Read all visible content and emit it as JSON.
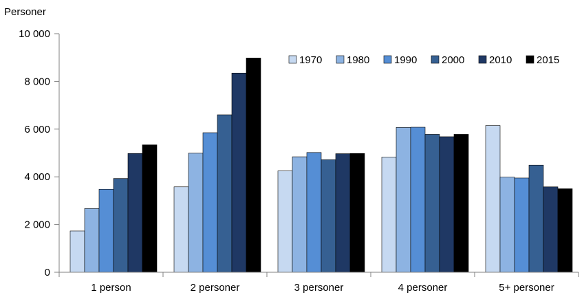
{
  "chart_data": {
    "type": "bar",
    "ylabel": "Personer",
    "ylim": [
      0,
      10000
    ],
    "yticks": [
      0,
      2000,
      4000,
      6000,
      8000,
      10000
    ],
    "ytick_labels": [
      "0",
      "2 000",
      "4 000",
      "6 000",
      "8 000",
      "10 000"
    ],
    "categories": [
      "1 person",
      "2 personer",
      "3 personer",
      "4 personer",
      "5+ personer"
    ],
    "legend_position": "top-right",
    "grid": false,
    "series": [
      {
        "name": "1970",
        "color": "#c6d9f1",
        "values": [
          1730,
          3580,
          4250,
          4830,
          6150
        ]
      },
      {
        "name": "1980",
        "color": "#8db3e2",
        "values": [
          2670,
          4990,
          4840,
          6070,
          3990
        ]
      },
      {
        "name": "1990",
        "color": "#558ed5",
        "values": [
          3480,
          5850,
          5020,
          6080,
          3950
        ]
      },
      {
        "name": "2000",
        "color": "#366092",
        "values": [
          3930,
          6600,
          4720,
          5780,
          4490
        ]
      },
      {
        "name": "2010",
        "color": "#1f3864",
        "values": [
          4980,
          8350,
          4970,
          5680,
          3580
        ]
      },
      {
        "name": "2015",
        "color": "#000000",
        "values": [
          5340,
          8980,
          4980,
          5780,
          3500
        ]
      }
    ]
  }
}
